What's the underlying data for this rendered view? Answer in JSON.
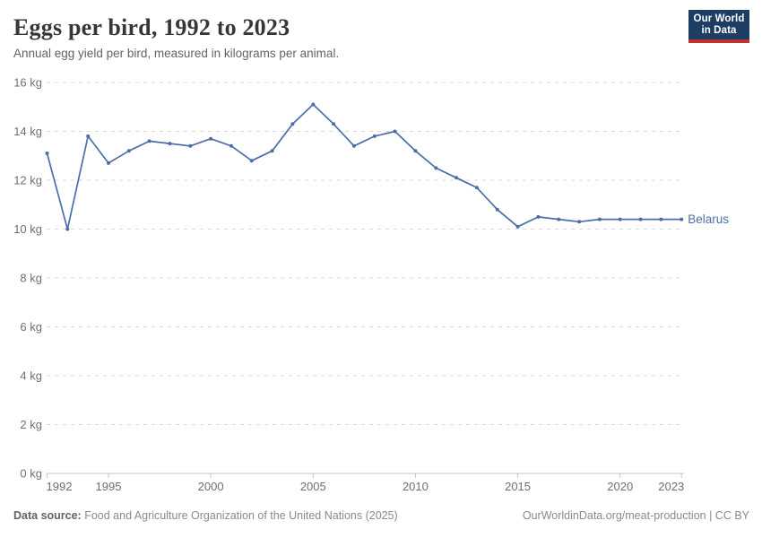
{
  "header": {
    "title": "Eggs per bird, 1992 to 2023",
    "subtitle": "Annual egg yield per bird, measured in kilograms per animal."
  },
  "logo": {
    "line1": "Our World",
    "line2": "in Data",
    "bg_color": "#1d3d63",
    "bar_color": "#c0332e"
  },
  "chart_data": {
    "type": "line",
    "title": "Eggs per bird, 1992 to 2023",
    "xlabel": "",
    "ylabel": "",
    "x": [
      1992,
      1993,
      1994,
      1995,
      1996,
      1997,
      1998,
      1999,
      2000,
      2001,
      2002,
      2003,
      2004,
      2005,
      2006,
      2007,
      2008,
      2009,
      2010,
      2011,
      2012,
      2013,
      2014,
      2015,
      2016,
      2017,
      2018,
      2019,
      2020,
      2021,
      2022,
      2023
    ],
    "series": [
      {
        "name": "Belarus",
        "color": "#4c6ea8",
        "values": [
          13.1,
          10.0,
          13.8,
          12.7,
          13.2,
          13.6,
          13.5,
          13.4,
          13.7,
          13.4,
          12.8,
          13.2,
          14.3,
          15.1,
          14.3,
          13.4,
          13.8,
          14.0,
          13.2,
          12.5,
          12.1,
          11.7,
          10.8,
          10.1,
          10.5,
          10.4,
          10.3,
          10.4,
          10.4,
          10.4,
          10.4,
          10.4
        ]
      }
    ],
    "xlim": [
      1992,
      2023
    ],
    "ylim": [
      0,
      16
    ],
    "xticks": [
      1992,
      1995,
      2000,
      2005,
      2010,
      2015,
      2020,
      2023
    ],
    "yticks": [
      0,
      2,
      4,
      6,
      8,
      10,
      12,
      14,
      16
    ],
    "ytick_suffix": " kg",
    "grid": "horizontal-dashed",
    "grid_color": "#d9d9d9",
    "axis_color": "#c4c4c4",
    "legend_position": "end-of-line",
    "end_label": "Belarus"
  },
  "footer": {
    "source_label": "Data source:",
    "source_text": " Food and Agriculture Organization of the United Nations (2025)",
    "credit": "OurWorldinData.org/meat-production | CC BY"
  }
}
